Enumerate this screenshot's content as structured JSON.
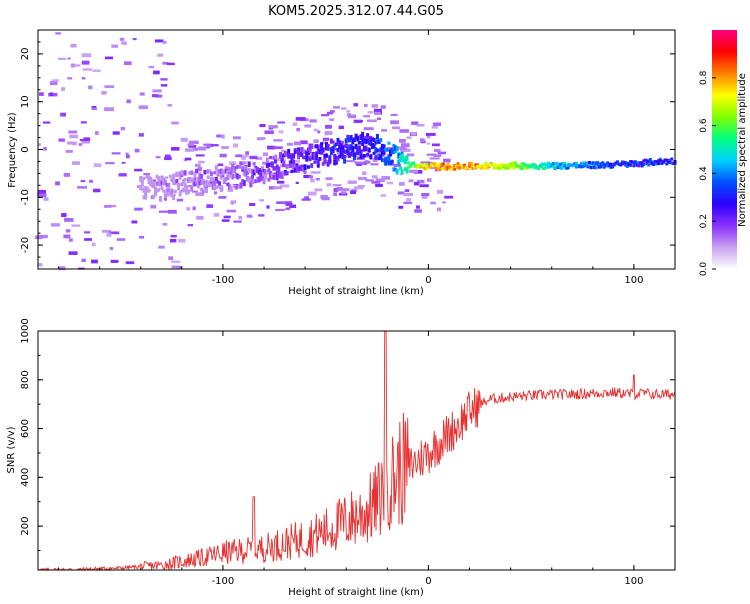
{
  "title": "KOM5.2025.312.07.44.G05",
  "chart_data": [
    {
      "type": "heatmap",
      "title": "",
      "xlabel": "Height of straight line (km)",
      "ylabel": "Frequency (Hz)",
      "xlim": [
        -190,
        120
      ],
      "ylim": [
        -25,
        25
      ],
      "x_ticks": [
        -100,
        0,
        100
      ],
      "y_ticks": [
        -20,
        -10,
        0,
        10,
        20
      ],
      "colorbar": {
        "label": "Normalized spectral amplitude",
        "range": [
          0,
          1
        ],
        "ticks": [
          "0.0",
          "0.2",
          "0.4",
          "0.6",
          "0.8"
        ],
        "colormap": [
          "#ffffff",
          "#c8a0f0",
          "#8a30ff",
          "#2a00ff",
          "#0050ff",
          "#00d0ff",
          "#00ff80",
          "#80ff00",
          "#ffff00",
          "#ff8000",
          "#ff0000",
          "#ff0080"
        ]
      },
      "ridge": {
        "x": [
          -130,
          -115,
          -100,
          -85,
          -70,
          -60,
          -50,
          -40,
          -32,
          -25,
          -18,
          -12,
          -5,
          0,
          10,
          20,
          40,
          60,
          80,
          100,
          110,
          120
        ],
        "freq_hz": [
          -8,
          -7,
          -6,
          -5,
          -3,
          -2,
          -1,
          0,
          1,
          0.5,
          -1.5,
          -3,
          -3.5,
          -3.5,
          -3.6,
          -3.5,
          -3.4,
          -3.4,
          -3.3,
          -3.0,
          -2.6,
          -2.4
        ],
        "amplitude": [
          0.18,
          0.2,
          0.22,
          0.25,
          0.3,
          0.32,
          0.35,
          0.38,
          0.35,
          0.4,
          0.45,
          0.6,
          0.75,
          0.85,
          0.9,
          0.9,
          0.75,
          0.55,
          0.45,
          0.4,
          0.42,
          0.4
        ]
      }
    },
    {
      "type": "line",
      "title": "",
      "xlabel": "Height of straight line (km)",
      "ylabel": "SNR (v/v)",
      "xlim": [
        -190,
        120
      ],
      "ylim": [
        20,
        1000
      ],
      "x_ticks": [
        -100,
        0,
        100
      ],
      "y_ticks": [
        200,
        400,
        600,
        800,
        1000
      ],
      "color": "#e83030",
      "series": [
        {
          "name": "SNR",
          "x": [
            -190,
            -170,
            -150,
            -130,
            -120,
            -110,
            -100,
            -90,
            -80,
            -70,
            -60,
            -50,
            -40,
            -30,
            -25,
            -22,
            -20,
            -18,
            -15,
            -10,
            -5,
            0,
            5,
            10,
            15,
            20,
            25,
            30,
            40,
            50,
            60,
            70,
            80,
            90,
            95,
            100,
            105,
            110,
            120
          ],
          "y": [
            20,
            22,
            28,
            40,
            55,
            70,
            90,
            100,
            110,
            130,
            150,
            180,
            220,
            260,
            300,
            340,
            420,
            380,
            420,
            440,
            470,
            500,
            540,
            580,
            620,
            670,
            700,
            720,
            730,
            735,
            740,
            740,
            745,
            748,
            745,
            740,
            745,
            740,
            740
          ]
        }
      ],
      "annotations": [
        {
          "x": -21,
          "y": 1000,
          "note": "spike"
        },
        {
          "x": -85,
          "y": 320,
          "note": "spike"
        },
        {
          "x": 100,
          "y": 820,
          "note": "spike"
        }
      ]
    }
  ]
}
